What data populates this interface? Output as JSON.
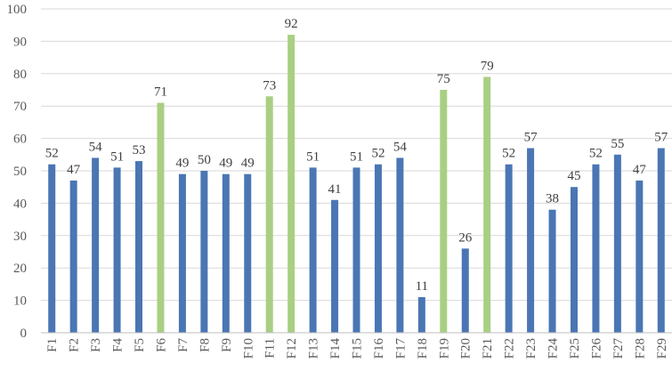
{
  "chart_data": {
    "type": "bar",
    "title": "",
    "xlabel": "",
    "ylabel": "",
    "ylim": [
      0,
      100
    ],
    "yticks": [
      0,
      10,
      20,
      30,
      40,
      50,
      60,
      70,
      80,
      90,
      100
    ],
    "grid": true,
    "categories": [
      "F1",
      "F2",
      "F3",
      "F4",
      "F5",
      "F6",
      "F7",
      "F8",
      "F9",
      "F10",
      "F11",
      "F12",
      "F13",
      "F14",
      "F15",
      "F16",
      "F17",
      "F18",
      "F19",
      "F20",
      "F21",
      "F22",
      "F23",
      "F24",
      "F25",
      "F26",
      "F27",
      "F28",
      "F29"
    ],
    "values": [
      52,
      47,
      54,
      51,
      53,
      71,
      49,
      50,
      49,
      49,
      73,
      92,
      51,
      41,
      51,
      52,
      54,
      11,
      75,
      26,
      79,
      52,
      57,
      38,
      45,
      52,
      55,
      47,
      57
    ],
    "highlighted": [
      "F6",
      "F11",
      "F12",
      "F19",
      "F21"
    ],
    "colors": {
      "default": "#4a76b4",
      "highlight": "#a9cf83"
    }
  }
}
